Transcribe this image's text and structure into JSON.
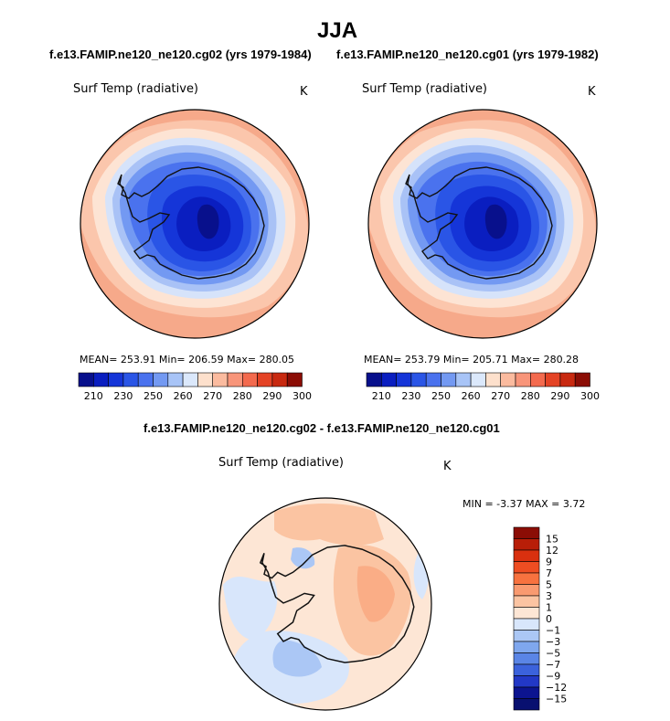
{
  "season": "JJA",
  "case_top_left": "f.e13.FAMIP.ne120_ne120.cg02 (yrs 1979-1984)",
  "case_top_right": "f.e13.FAMIP.ne120_ne120.cg01 (yrs 1979-1982)",
  "diff_title": "f.e13.FAMIP.ne120_ne120.cg02 - f.e13.FAMIP.ne120_ne120.cg01",
  "panels": [
    {
      "variable": "Surf Temp (radiative)",
      "units": "K",
      "stats": "MEAN= 253.91   Min= 206.59   Max= 280.05",
      "colorbar_ticks": [
        "210",
        "230",
        "250",
        "260",
        "270",
        "280",
        "290",
        "300"
      ]
    },
    {
      "variable": "Surf Temp (radiative)",
      "units": "K",
      "stats": "MEAN= 253.79   Min= 205.71   Max= 280.28",
      "colorbar_ticks": [
        "210",
        "230",
        "250",
        "260",
        "270",
        "280",
        "290",
        "300"
      ]
    },
    {
      "variable": "Surf Temp (radiative)",
      "units": "K",
      "stats": "MIN =  -3.37  MAX =   3.72",
      "colorbar_ticks": [
        "15",
        "12",
        "9",
        "7",
        "5",
        "3",
        "1",
        "0",
        "-1",
        "-3",
        "-5",
        "-7",
        "-9",
        "-12",
        "-15"
      ]
    }
  ],
  "colors": {
    "abs_scale": [
      "#08108c",
      "#0a1ec0",
      "#1535d8",
      "#2a55e6",
      "#4a72ee",
      "#7399f2",
      "#a8c4f7",
      "#dbe8fb",
      "#fde0cc",
      "#fbbb9f",
      "#f8957a",
      "#f36a4e",
      "#e44325",
      "#c82910",
      "#8b0d05"
    ],
    "diff_scale": [
      "#8b0d05",
      "#b81e08",
      "#d9300f",
      "#ee4d22",
      "#f7723f",
      "#f99a70",
      "#fbc4a2",
      "#fde6d5",
      "#d8e6fb",
      "#abc7f5",
      "#7fa7ee",
      "#5a85e6",
      "#3b62dc",
      "#2238c6",
      "#0c1490",
      "#081070"
    ]
  }
}
